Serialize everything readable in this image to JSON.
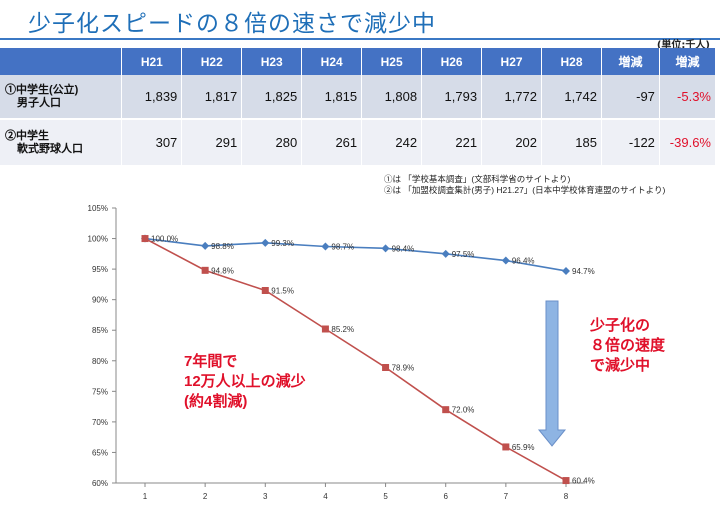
{
  "title": "少子化スピードの８倍の速さで減少中",
  "unit": "(単位:千人)",
  "table": {
    "headers": [
      "",
      "H21",
      "H22",
      "H23",
      "H24",
      "H25",
      "H26",
      "H27",
      "H28",
      "増減",
      "増減"
    ],
    "rows": [
      {
        "label_line1": "①中学生(公立)",
        "label_line2": "男子人口",
        "values": [
          "1,839",
          "1,817",
          "1,825",
          "1,815",
          "1,808",
          "1,793",
          "1,772",
          "1,742"
        ],
        "diff": "-97",
        "pct": "-5.3%"
      },
      {
        "label_line1": "②中学生",
        "label_line2": "軟式野球人口",
        "values": [
          "307",
          "291",
          "280",
          "261",
          "242",
          "221",
          "202",
          "185"
        ],
        "diff": "-122",
        "pct": "-39.6%"
      }
    ]
  },
  "notes": {
    "line1": "①は 「学校基本調査」(文部科学省のサイトより)",
    "line2": "②は 「加盟校調査集計(男子) H21.27」(日本中学校体育連盟のサイトより)"
  },
  "annotations": {
    "left": [
      "7年間で",
      "12万人以上の減少",
      "(約4割減)"
    ],
    "right": [
      "少子化の",
      "８倍の速度",
      "で減少中"
    ]
  },
  "colors": {
    "title": "#1f6fb8",
    "header": "#4472c4",
    "blue_series": "#4a7ebf",
    "red_series": "#c0504d",
    "arrow": "#8eb4e3",
    "accent_red": "#e0102a"
  },
  "chart_data": {
    "type": "line",
    "x": [
      1,
      2,
      3,
      4,
      5,
      6,
      7,
      8
    ],
    "ylim": [
      60,
      105
    ],
    "yticks": [
      "60%",
      "65%",
      "70%",
      "75%",
      "80%",
      "85%",
      "90%",
      "95%",
      "100%",
      "105%"
    ],
    "ytick_values": [
      60,
      65,
      70,
      75,
      80,
      85,
      90,
      95,
      100,
      105
    ],
    "grid": false,
    "series": [
      {
        "values": [
          100.0,
          98.8,
          99.3,
          98.7,
          98.4,
          97.5,
          96.4,
          94.7
        ],
        "labels": [
          "100.0%",
          "98.8%",
          "99.3%",
          "98.7%",
          "98.4%",
          "97.5%",
          "96.4%",
          "94.7%"
        ]
      },
      {
        "values": [
          100.0,
          94.8,
          91.5,
          85.2,
          78.9,
          72.0,
          65.9,
          60.4
        ],
        "labels": [
          "",
          "94.8%",
          "91.5%",
          "85.2%",
          "78.9%",
          "72.0%",
          "65.9%",
          "60.4%"
        ]
      }
    ]
  }
}
